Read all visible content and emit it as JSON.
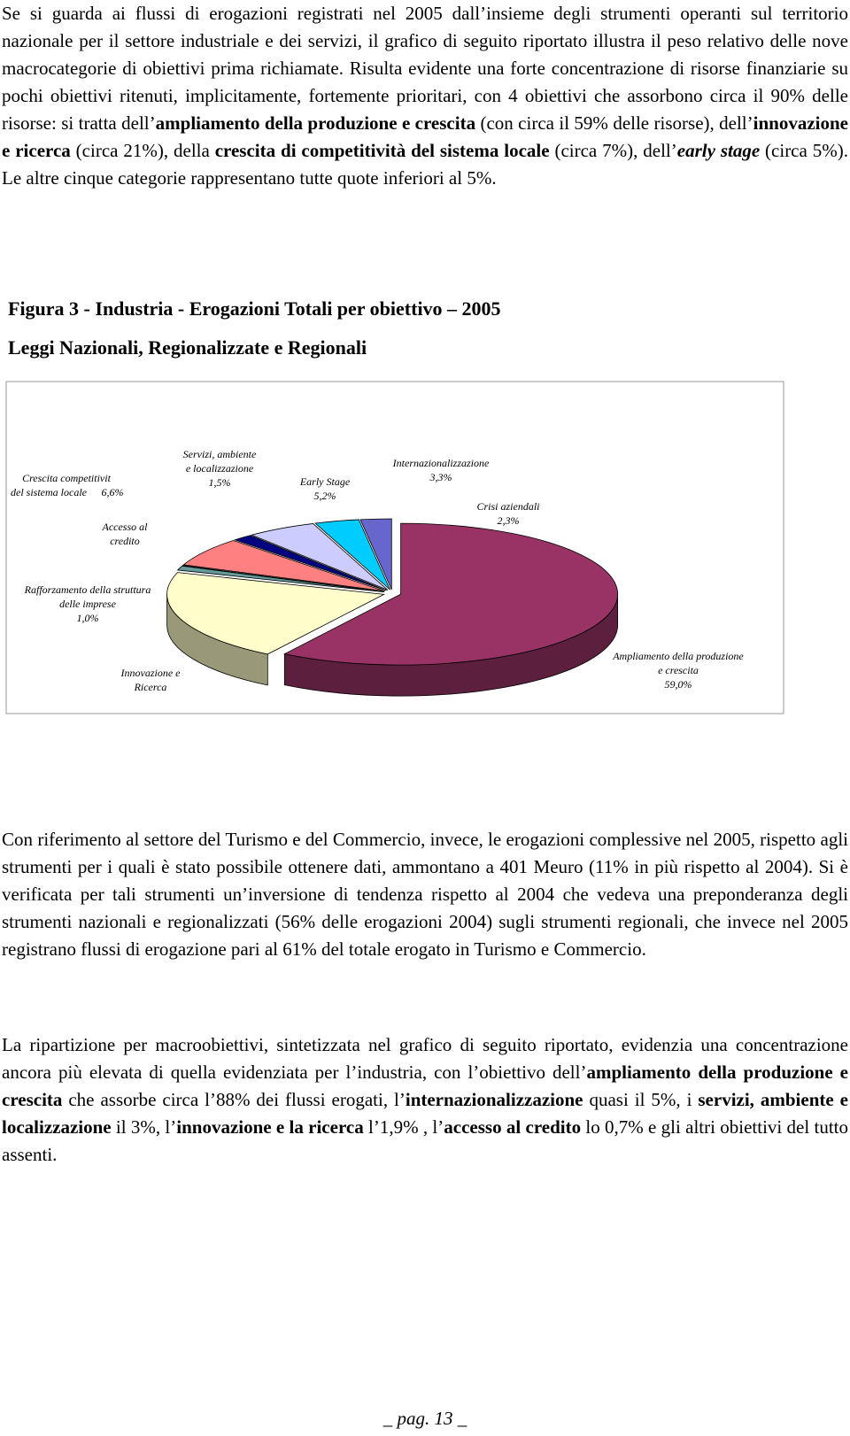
{
  "paragraphs": [
    [
      {
        "text": "Se si guarda ai flussi di erogazioni registrati nel 2005 dall’insieme degli strumenti operanti sul territorio nazionale per il settore industriale e dei servizi, il grafico di seguito riportato illustra il peso relativo delle nove macrocategorie di obiettivi prima richiamate. Risulta evidente una forte concentrazione di risorse finanziarie su pochi obiettivi ritenuti, implicitamente, fortemente prioritari, con 4 obiettivi che assorbono circa il 90% delle risorse: si tratta dell’"
      },
      {
        "text": "ampliamento della produzione e crescita",
        "bold": true
      },
      {
        "text": " (con circa il 59% delle risorse), dell’"
      },
      {
        "text": "innovazione e ricerca",
        "bold": true
      },
      {
        "text": " (circa 21%), della "
      },
      {
        "text": "crescita di competitività del sistema locale",
        "bold": true
      },
      {
        "text": " (circa 7%), dell’"
      },
      {
        "text": "early stage",
        "bold": true,
        "italic": true
      },
      {
        "text": " (circa 5%). Le altre cinque categorie rappresentano tutte quote inferiori al 5%."
      }
    ],
    [
      {
        "text": "Con riferimento al settore del Turismo e del Commercio, invece, le erogazioni complessive nel 2005, rispetto agli strumenti per i quali è stato possibile ottenere dati, ammontano a 401 Meuro (11% in più rispetto al 2004). Si è verificata per tali strumenti un’inversione di tendenza rispetto al 2004 che vedeva una preponderanza degli strumenti nazionali e regionalizzati (56% delle erogazioni 2004) sugli strumenti regionali, che invece nel 2005 registrano flussi di erogazione pari al 61% del totale erogato in Turismo e Commercio."
      }
    ],
    [
      {
        "text": "La ripartizione per macroobiettivi, sintetizzata nel grafico di seguito riportato, evidenzia una concentrazione ancora più elevata di quella evidenziata per l’industria, con l’obiettivo dell’"
      },
      {
        "text": "ampliamento della produzione e crescita",
        "bold": true
      },
      {
        "text": " che assorbe circa l’88% dei flussi erogati, l’"
      },
      {
        "text": "internazionalizzazione",
        "bold": true
      },
      {
        "text": " quasi il 5%, i "
      },
      {
        "text": "servizi, ambiente e localizzazione",
        "bold": true
      },
      {
        "text": " il 3%, l’"
      },
      {
        "text": "innovazione e la ricerca",
        "bold": true
      },
      {
        "text": " l’1,9% , l’"
      },
      {
        "text": "accesso al credito",
        "bold": true
      },
      {
        "text": " lo 0,7% e gli altri obiettivi del tutto assenti."
      }
    ]
  ],
  "figure": {
    "title": "Figura 3 - Industria - Erogazioni Totali per obiettivo – 2005",
    "subtitle": "Leggi Nazionali, Regionalizzate e Regionali"
  },
  "chart_data": {
    "type": "pie",
    "categories": [
      [
        "Ampliamento della produzione",
        "e crescita"
      ],
      [
        "Innovazione e",
        "Ricerca"
      ],
      [
        "Rafforzamento della struttura",
        "delle imprese"
      ],
      [
        "Accesso al",
        "credito"
      ],
      [
        "Crescita competitivit",
        "del sistema locale"
      ],
      [
        "Servizi, ambiente",
        "e localizzazione"
      ],
      [
        "Early Stage"
      ],
      [
        "Internazionalizzazione"
      ],
      [
        "Crisi aziendali"
      ]
    ],
    "values": [
      59.0,
      21,
      1.0,
      0.1,
      6.6,
      1.5,
      5.2,
      3.3,
      2.3
    ],
    "value_labels": [
      "59,0%",
      null,
      "1,0%",
      null,
      "6,6%",
      "1,5%",
      "5,2%",
      "3,3%",
      "2,3%"
    ],
    "colors": [
      "#993366",
      "#ffffcc",
      "#669999",
      "#808080",
      "#ff8080",
      "#000080",
      "#ccccff",
      "#00ccff",
      "#6666cc"
    ]
  },
  "footer": "_ pag. 13 _"
}
